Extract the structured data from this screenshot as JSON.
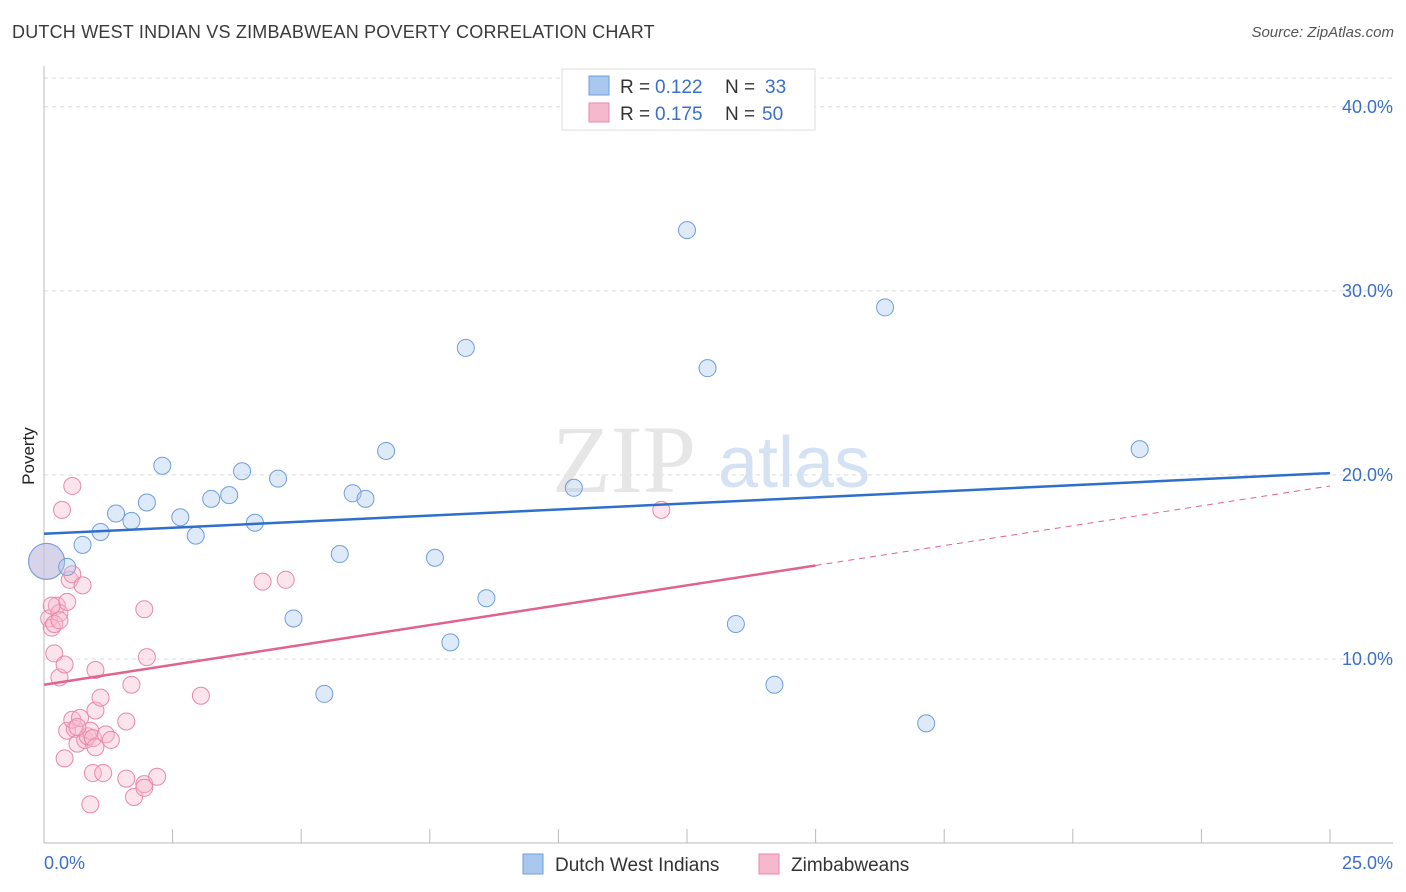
{
  "header": {
    "title": "DUTCH WEST INDIAN VS ZIMBABWEAN POVERTY CORRELATION CHART",
    "source": "Source: ZipAtlas.com"
  },
  "watermark": {
    "zip": "ZIP",
    "atlas": "atlas"
  },
  "legend": {
    "series1": {
      "r_label": "R = ",
      "r_value": "0.122",
      "n_label": "N = ",
      "n_value": "33"
    },
    "series2": {
      "r_label": "R = ",
      "r_value": "0.175",
      "n_label": "N = ",
      "n_value": "50"
    }
  },
  "bottom_legend": {
    "series1": "Dutch West Indians",
    "series2": "Zimbabweans"
  },
  "colors": {
    "blue_fill": "#aac8ee",
    "blue_stroke": "#6f9edc",
    "blue_line": "#2f6fcc",
    "pink_fill": "#f6b8cc",
    "pink_stroke": "#e888a8",
    "pink_line": "#e0638e",
    "grid": "#dddddd",
    "axis_label": "#3b6fc9"
  },
  "chart_data": {
    "type": "scatter",
    "title": "DUTCH WEST INDIAN VS ZIMBABWEAN POVERTY CORRELATION CHART",
    "xlabel": "",
    "ylabel": "Poverty",
    "xlim": [
      0,
      25
    ],
    "ylim": [
      0,
      42
    ],
    "x_tick_labels": {
      "min": "0.0%",
      "max": "25.0%"
    },
    "y_ticks": [
      {
        "value": 10,
        "label": "10.0%"
      },
      {
        "value": 20,
        "label": "20.0%"
      },
      {
        "value": 30,
        "label": "30.0%"
      },
      {
        "value": 40,
        "label": "40.0%"
      }
    ],
    "series": [
      {
        "name": "Dutch West Indians",
        "color": "blue",
        "trend": {
          "x0": 0,
          "y0": 16.8,
          "x1": 25,
          "y1": 20.1,
          "dashed_from": null
        },
        "points": [
          {
            "x": 0.05,
            "y": 15.3,
            "big": true
          },
          {
            "x": 0.45,
            "y": 15.0
          },
          {
            "x": 0.75,
            "y": 16.2
          },
          {
            "x": 1.1,
            "y": 16.9
          },
          {
            "x": 1.4,
            "y": 17.9
          },
          {
            "x": 1.7,
            "y": 17.5
          },
          {
            "x": 2.0,
            "y": 18.5
          },
          {
            "x": 2.3,
            "y": 20.5
          },
          {
            "x": 2.65,
            "y": 17.7
          },
          {
            "x": 2.95,
            "y": 16.7
          },
          {
            "x": 3.25,
            "y": 18.7
          },
          {
            "x": 3.6,
            "y": 18.9
          },
          {
            "x": 3.85,
            "y": 20.2
          },
          {
            "x": 4.1,
            "y": 17.4
          },
          {
            "x": 4.55,
            "y": 19.8
          },
          {
            "x": 4.85,
            "y": 12.2
          },
          {
            "x": 5.45,
            "y": 8.1
          },
          {
            "x": 5.75,
            "y": 15.7
          },
          {
            "x": 6.0,
            "y": 19.0
          },
          {
            "x": 6.25,
            "y": 18.7
          },
          {
            "x": 6.65,
            "y": 21.3
          },
          {
            "x": 7.6,
            "y": 15.5
          },
          {
            "x": 7.9,
            "y": 10.9
          },
          {
            "x": 8.2,
            "y": 26.9
          },
          {
            "x": 8.6,
            "y": 13.3
          },
          {
            "x": 10.3,
            "y": 19.3
          },
          {
            "x": 12.5,
            "y": 33.3
          },
          {
            "x": 12.9,
            "y": 25.8
          },
          {
            "x": 13.45,
            "y": 11.9
          },
          {
            "x": 14.2,
            "y": 8.6
          },
          {
            "x": 16.35,
            "y": 29.1
          },
          {
            "x": 17.15,
            "y": 6.5
          },
          {
            "x": 21.3,
            "y": 21.4
          }
        ]
      },
      {
        "name": "Zimbabweans",
        "color": "pink",
        "trend": {
          "x0": 0,
          "y0": 8.6,
          "x1": 25,
          "y1": 19.4,
          "dashed_from": 15.0
        },
        "points": [
          {
            "x": 0.05,
            "y": 15.3,
            "big": true
          },
          {
            "x": 0.1,
            "y": 12.2
          },
          {
            "x": 0.15,
            "y": 11.7
          },
          {
            "x": 0.2,
            "y": 10.3
          },
          {
            "x": 0.25,
            "y": 12.9
          },
          {
            "x": 0.3,
            "y": 9.0
          },
          {
            "x": 0.3,
            "y": 12.5
          },
          {
            "x": 0.35,
            "y": 18.1
          },
          {
            "x": 0.4,
            "y": 9.7
          },
          {
            "x": 0.45,
            "y": 13.1
          },
          {
            "x": 0.45,
            "y": 6.1
          },
          {
            "x": 0.4,
            "y": 4.6
          },
          {
            "x": 0.5,
            "y": 14.3
          },
          {
            "x": 0.55,
            "y": 19.4
          },
          {
            "x": 0.55,
            "y": 14.6
          },
          {
            "x": 0.6,
            "y": 6.2
          },
          {
            "x": 0.65,
            "y": 5.4
          },
          {
            "x": 0.55,
            "y": 6.7
          },
          {
            "x": 0.7,
            "y": 6.8
          },
          {
            "x": 0.75,
            "y": 14.0
          },
          {
            "x": 0.8,
            "y": 5.6
          },
          {
            "x": 0.85,
            "y": 5.8
          },
          {
            "x": 0.9,
            "y": 6.1
          },
          {
            "x": 0.95,
            "y": 5.7
          },
          {
            "x": 0.95,
            "y": 3.8
          },
          {
            "x": 0.9,
            "y": 2.1
          },
          {
            "x": 1.0,
            "y": 7.2
          },
          {
            "x": 1.0,
            "y": 9.4
          },
          {
            "x": 1.0,
            "y": 5.2
          },
          {
            "x": 1.1,
            "y": 7.9
          },
          {
            "x": 1.15,
            "y": 3.8
          },
          {
            "x": 1.2,
            "y": 5.9
          },
          {
            "x": 1.6,
            "y": 6.6
          },
          {
            "x": 1.6,
            "y": 3.5
          },
          {
            "x": 1.7,
            "y": 8.6
          },
          {
            "x": 1.75,
            "y": 2.5
          },
          {
            "x": 1.95,
            "y": 3.2
          },
          {
            "x": 1.95,
            "y": 3.0
          },
          {
            "x": 1.95,
            "y": 12.7
          },
          {
            "x": 2.0,
            "y": 10.1
          },
          {
            "x": 2.2,
            "y": 3.6
          },
          {
            "x": 3.05,
            "y": 8.0
          },
          {
            "x": 4.25,
            "y": 14.2
          },
          {
            "x": 4.7,
            "y": 14.3
          },
          {
            "x": 12.0,
            "y": 18.1
          },
          {
            "x": 0.15,
            "y": 12.9
          },
          {
            "x": 0.2,
            "y": 11.9
          },
          {
            "x": 0.65,
            "y": 6.3
          },
          {
            "x": 1.3,
            "y": 5.6
          },
          {
            "x": 0.3,
            "y": 12.1
          }
        ]
      }
    ]
  }
}
